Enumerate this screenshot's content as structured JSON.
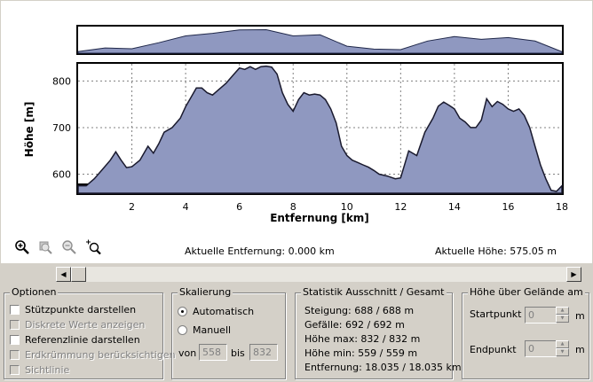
{
  "chart_data": {
    "type": "area",
    "xlabel": "Entfernung [km]",
    "ylabel": "Höhe [m]",
    "xlim": [
      0,
      18
    ],
    "ylim": [
      559,
      837
    ],
    "xticks": [
      "2",
      "4",
      "6",
      "8",
      "10",
      "12",
      "14",
      "16",
      "18"
    ],
    "yticks": [
      "600",
      "700",
      "800"
    ],
    "grid": true,
    "fill_color": "#8f98c0",
    "x": [
      0,
      0.3,
      0.6,
      0.9,
      1.2,
      1.4,
      1.6,
      1.8,
      2.0,
      2.3,
      2.6,
      2.8,
      3.0,
      3.2,
      3.5,
      3.8,
      4.0,
      4.2,
      4.4,
      4.6,
      4.8,
      5.0,
      5.2,
      5.5,
      5.8,
      6.0,
      6.2,
      6.4,
      6.6,
      6.8,
      7.0,
      7.2,
      7.4,
      7.6,
      7.8,
      8.0,
      8.2,
      8.4,
      8.6,
      8.8,
      9.0,
      9.2,
      9.4,
      9.6,
      9.8,
      10.0,
      10.2,
      10.4,
      10.6,
      10.8,
      11.0,
      11.2,
      11.5,
      11.8,
      12.0,
      12.3,
      12.6,
      12.9,
      13.2,
      13.4,
      13.6,
      13.8,
      14.0,
      14.2,
      14.4,
      14.6,
      14.8,
      15.0,
      15.2,
      15.4,
      15.6,
      15.8,
      16.0,
      16.2,
      16.4,
      16.6,
      16.8,
      17.0,
      17.2,
      17.4,
      17.6,
      17.8,
      18.0
    ],
    "y": [
      575,
      575,
      590,
      610,
      630,
      648,
      630,
      614,
      616,
      630,
      660,
      645,
      665,
      690,
      700,
      720,
      745,
      765,
      785,
      785,
      775,
      770,
      780,
      795,
      815,
      828,
      825,
      831,
      825,
      831,
      832,
      830,
      815,
      775,
      750,
      735,
      760,
      775,
      770,
      772,
      770,
      760,
      740,
      710,
      660,
      640,
      630,
      625,
      620,
      615,
      608,
      600,
      596,
      590,
      592,
      650,
      640,
      690,
      720,
      746,
      755,
      748,
      740,
      720,
      712,
      700,
      700,
      716,
      762,
      745,
      756,
      750,
      740,
      735,
      740,
      726,
      700,
      660,
      620,
      590,
      565,
      563,
      575
    ]
  },
  "overview_data": {
    "x": [
      0,
      1,
      2,
      3,
      4,
      5,
      6,
      7,
      8,
      9,
      10,
      11,
      12,
      13,
      14,
      15,
      16,
      17,
      18
    ],
    "y": [
      578,
      620,
      610,
      680,
      760,
      790,
      830,
      832,
      760,
      772,
      640,
      606,
      600,
      700,
      752,
      720,
      740,
      700,
      575
    ]
  },
  "readouts": {
    "current_distance": "Aktuelle Entfernung: 0.000 km",
    "current_height": "Aktuelle Höhe: 575.05 m"
  },
  "icons": {
    "zoom_in": "zoom-in-icon",
    "zoom_out_1": "zoom-out-icon",
    "zoom_out_2": "zoom-reset-icon",
    "zoom_area": "zoom-area-icon"
  },
  "options": {
    "title": "Optionen",
    "items": [
      {
        "label": "Stützpunkte darstellen",
        "checked": false,
        "enabled": true
      },
      {
        "label": "Diskrete Werte anzeigen",
        "checked": false,
        "enabled": false
      },
      {
        "label": "Referenzlinie darstellen",
        "checked": false,
        "enabled": true
      },
      {
        "label": "Erdkrümmung berücksichtigen",
        "checked": false,
        "enabled": false
      },
      {
        "label": "Sichtlinie",
        "checked": false,
        "enabled": false
      }
    ]
  },
  "scaling": {
    "title": "Skalierung",
    "auto_label": "Automatisch",
    "manual_label": "Manuell",
    "from_label": "von",
    "from_value": "558",
    "to_label": "bis",
    "to_value": "832"
  },
  "statistics": {
    "title": "Statistik   Ausschnitt / Gesamt",
    "lines": [
      "Steigung: 688 / 688 m",
      "Gefälle: 692 / 692 m",
      "Höhe max: 832 / 832 m",
      "Höhe min: 559 / 559 m",
      "Entfernung: 18.035 / 18.035 km"
    ]
  },
  "terrain": {
    "title": "Höhe über Gelände am",
    "start_label": "Startpunkt",
    "start_value": "0",
    "end_label": "Endpunkt",
    "end_value": "0",
    "unit": "m"
  }
}
